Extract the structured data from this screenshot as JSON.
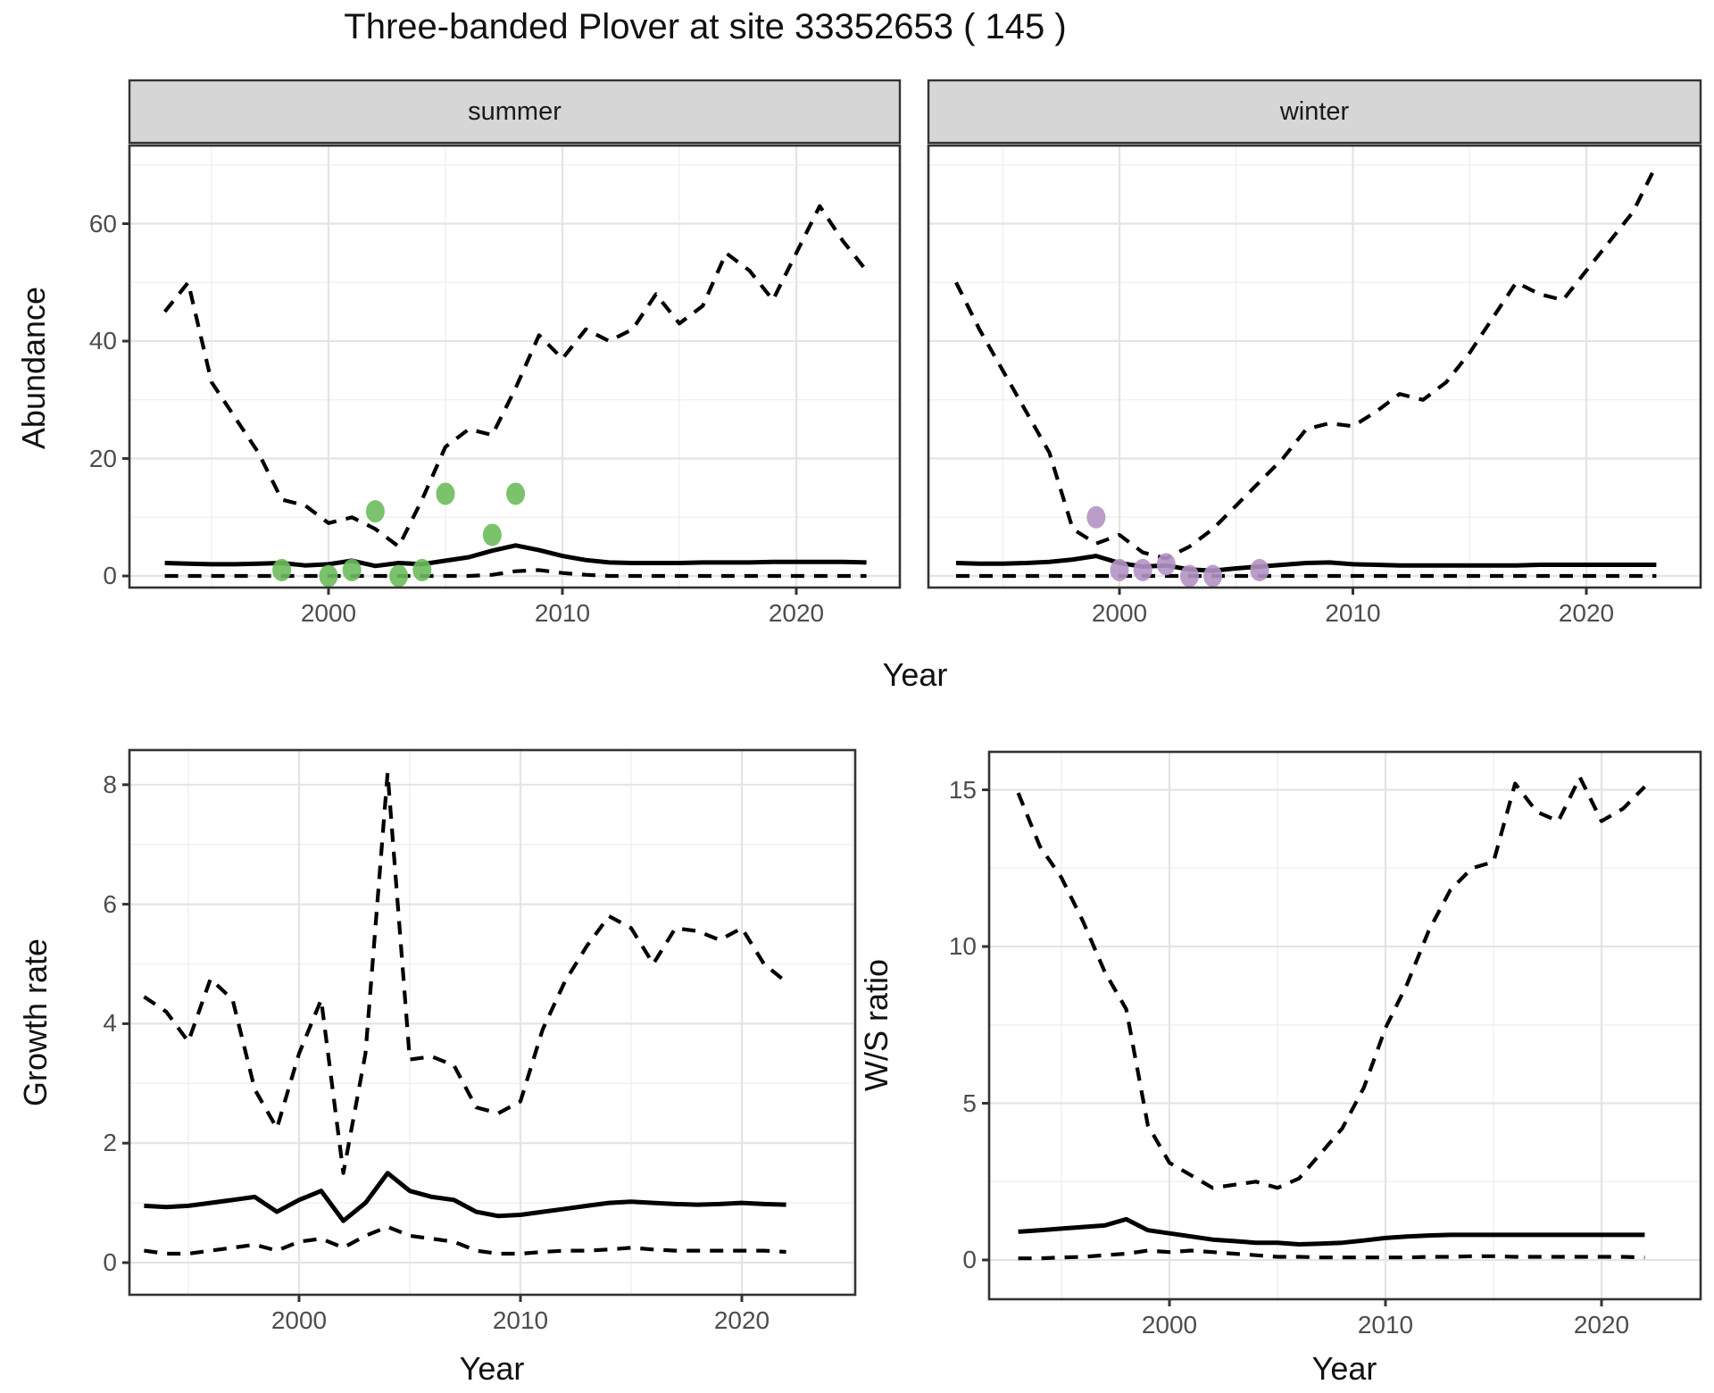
{
  "title": "Three-banded Plover at site 33352653 ( 145 )",
  "colors": {
    "summer_points": "#6dbb5d",
    "winter_points": "#b492c4",
    "line": "#000000",
    "strip_bg": "#d6d6d6",
    "panel_border": "#333333",
    "grid_major": "#e4e4e4",
    "grid_minor": "#f1f1f1",
    "tick_text": "#4d4d4d",
    "tick_mark": "#333333"
  },
  "top_plot": {
    "ylabel": "Abundance",
    "xlabel": "Year",
    "facet_summer": "summer",
    "facet_winter": "winter"
  },
  "growth_plot": {
    "ylabel": "Growth rate",
    "xlabel": "Year"
  },
  "ws_plot": {
    "ylabel": "W/S ratio",
    "xlabel": "Year"
  },
  "chart_data": [
    {
      "id": "abundance-summer",
      "type": "line",
      "facet": "summer",
      "xlabel": "Year",
      "ylabel": "Abundance",
      "x_ticks": [
        2000,
        2010,
        2020
      ],
      "y_ticks": [
        0,
        20,
        40,
        60
      ],
      "xlim": [
        1991.5,
        2024.4
      ],
      "ylim": [
        -2,
        73
      ],
      "grid": true,
      "legend": "none",
      "years": [
        1993,
        1994,
        1995,
        1996,
        1997,
        1998,
        1999,
        2000,
        2001,
        2002,
        2003,
        2004,
        2005,
        2006,
        2007,
        2008,
        2009,
        2010,
        2011,
        2012,
        2013,
        2014,
        2015,
        2016,
        2017,
        2018,
        2019,
        2020,
        2021,
        2022,
        2023
      ],
      "series": [
        {
          "name": "upper_ci",
          "style": "dashed",
          "values": [
            45,
            50,
            33,
            27,
            21,
            13,
            12,
            9,
            10,
            8,
            5,
            13,
            22,
            25,
            24,
            32,
            41,
            37,
            42,
            40,
            42,
            48,
            43,
            46,
            55,
            52,
            47,
            55,
            63,
            57,
            52
          ]
        },
        {
          "name": "median",
          "style": "solid",
          "values": [
            2.2,
            2.1,
            2,
            2,
            2.1,
            2.2,
            1.8,
            2,
            2.6,
            1.7,
            2.2,
            2,
            2.6,
            3.2,
            4.3,
            5.2,
            4.4,
            3.4,
            2.7,
            2.3,
            2.2,
            2.2,
            2.2,
            2.3,
            2.3,
            2.3,
            2.4,
            2.4,
            2.4,
            2.4,
            2.3
          ]
        },
        {
          "name": "lower_ci",
          "style": "dashed",
          "values": [
            0,
            0,
            0,
            0,
            0,
            0,
            0,
            0,
            0,
            0,
            0,
            0,
            0,
            0,
            0.2,
            0.8,
            1,
            0.5,
            0.2,
            0,
            0,
            0,
            0,
            0,
            0,
            0,
            0,
            0,
            0,
            0,
            0
          ]
        }
      ],
      "points": {
        "name": "observed_counts",
        "color_key": "summer_points",
        "data": [
          [
            1998,
            1
          ],
          [
            2000,
            0
          ],
          [
            2001,
            1
          ],
          [
            2002,
            11
          ],
          [
            2003,
            0
          ],
          [
            2004,
            1
          ],
          [
            2005,
            14
          ],
          [
            2007,
            7
          ],
          [
            2008,
            14
          ]
        ]
      }
    },
    {
      "id": "abundance-winter",
      "type": "line",
      "facet": "winter",
      "xlabel": "Year",
      "ylabel": "Abundance",
      "x_ticks": [
        2000,
        2010,
        2020
      ],
      "y_ticks": [
        0,
        20,
        40,
        60
      ],
      "xlim": [
        1991.8,
        2024.9
      ],
      "ylim": [
        -2,
        73
      ],
      "grid": true,
      "legend": "none",
      "years": [
        1993,
        1994,
        1995,
        1996,
        1997,
        1998,
        1999,
        2000,
        2001,
        2002,
        2003,
        2004,
        2005,
        2006,
        2007,
        2008,
        2009,
        2010,
        2011,
        2012,
        2013,
        2014,
        2015,
        2016,
        2017,
        2018,
        2019,
        2020,
        2021,
        2022,
        2023
      ],
      "series": [
        {
          "name": "upper_ci",
          "style": "dashed",
          "values": [
            50,
            42,
            35,
            28,
            21,
            8,
            5.5,
            7,
            4,
            3,
            5,
            8,
            12,
            16,
            20,
            25,
            26,
            25.5,
            28,
            31,
            30,
            33,
            38,
            44,
            50,
            48,
            47,
            52,
            57,
            62,
            70
          ]
        },
        {
          "name": "median",
          "style": "solid",
          "values": [
            2.2,
            2.1,
            2.1,
            2.2,
            2.4,
            2.8,
            3.4,
            2.2,
            1.6,
            1.8,
            1.1,
            0.9,
            1.3,
            1.6,
            1.9,
            2.2,
            2.3,
            2,
            1.9,
            1.8,
            1.8,
            1.8,
            1.8,
            1.8,
            1.8,
            1.9,
            1.9,
            1.9,
            1.9,
            1.9,
            1.9
          ]
        },
        {
          "name": "lower_ci",
          "style": "dashed",
          "values": [
            0,
            0,
            0,
            0,
            0,
            0,
            0,
            0,
            0,
            0,
            0,
            0,
            0,
            0,
            0,
            0,
            0,
            0,
            0,
            0,
            0,
            0,
            0,
            0,
            0,
            0,
            0,
            0,
            0,
            0,
            0
          ]
        }
      ],
      "points": {
        "name": "observed_counts",
        "color_key": "winter_points",
        "data": [
          [
            1999,
            10
          ],
          [
            2000,
            1
          ],
          [
            2001,
            1
          ],
          [
            2002,
            2
          ],
          [
            2003,
            0
          ],
          [
            2004,
            0
          ],
          [
            2006,
            1
          ]
        ]
      }
    },
    {
      "id": "growth-rate",
      "type": "line",
      "facet": null,
      "xlabel": "Year",
      "ylabel": "Growth rate",
      "x_ticks": [
        2000,
        2010,
        2020
      ],
      "y_ticks": [
        0,
        2,
        4,
        6,
        8
      ],
      "xlim": [
        1992.3,
        2025.1
      ],
      "ylim": [
        -0.5,
        8.6
      ],
      "grid": true,
      "legend": "none",
      "years": [
        1993,
        1994,
        1995,
        1996,
        1997,
        1998,
        1999,
        2000,
        2001,
        2002,
        2003,
        2004,
        2005,
        2006,
        2007,
        2008,
        2009,
        2010,
        2011,
        2012,
        2013,
        2014,
        2015,
        2016,
        2017,
        2018,
        2019,
        2020,
        2021,
        2022
      ],
      "series": [
        {
          "name": "upper_ci",
          "style": "dashed",
          "values": [
            4.45,
            4.2,
            3.7,
            4.75,
            4.4,
            2.9,
            2.25,
            3.5,
            4.4,
            1.5,
            3.5,
            8.2,
            3.4,
            3.45,
            3.3,
            2.6,
            2.5,
            2.7,
            3.9,
            4.7,
            5.3,
            5.8,
            5.6,
            5,
            5.6,
            5.55,
            5.4,
            5.6,
            5,
            4.7
          ]
        },
        {
          "name": "median",
          "style": "solid",
          "values": [
            0.95,
            0.93,
            0.95,
            1,
            1.05,
            1.1,
            0.85,
            1.05,
            1.2,
            0.7,
            1,
            1.5,
            1.2,
            1.1,
            1.05,
            0.85,
            0.78,
            0.8,
            0.85,
            0.9,
            0.95,
            1,
            1.02,
            1,
            0.98,
            0.97,
            0.98,
            1,
            0.98,
            0.97
          ]
        },
        {
          "name": "lower_ci",
          "style": "dashed",
          "values": [
            0.2,
            0.15,
            0.15,
            0.2,
            0.25,
            0.3,
            0.2,
            0.35,
            0.4,
            0.25,
            0.45,
            0.6,
            0.45,
            0.4,
            0.35,
            0.2,
            0.15,
            0.15,
            0.18,
            0.2,
            0.2,
            0.22,
            0.25,
            0.22,
            0.2,
            0.2,
            0.2,
            0.2,
            0.2,
            0.18
          ]
        }
      ]
    },
    {
      "id": "ws-ratio",
      "type": "line",
      "facet": null,
      "xlabel": "Year",
      "ylabel": "W/S ratio",
      "x_ticks": [
        2000,
        2010,
        2020
      ],
      "y_ticks": [
        0,
        5,
        10,
        15
      ],
      "xlim": [
        1991.7,
        2024.6
      ],
      "ylim": [
        -1.2,
        16.2
      ],
      "grid": true,
      "legend": "none",
      "years": [
        1993,
        1994,
        1995,
        1996,
        1997,
        1998,
        1999,
        2000,
        2001,
        2002,
        2003,
        2004,
        2005,
        2006,
        2007,
        2008,
        2009,
        2010,
        2011,
        2012,
        2013,
        2014,
        2015,
        2016,
        2017,
        2018,
        2019,
        2020,
        2021,
        2022
      ],
      "series": [
        {
          "name": "upper_ci",
          "style": "dashed",
          "values": [
            14.9,
            13.2,
            12.2,
            10.8,
            9.2,
            8,
            4.3,
            3.1,
            2.7,
            2.3,
            2.4,
            2.5,
            2.3,
            2.6,
            3.4,
            4.2,
            5.5,
            7.4,
            8.8,
            10.5,
            11.8,
            12.5,
            12.7,
            15.2,
            14.3,
            14,
            15.4,
            14,
            14.4,
            15.1
          ]
        },
        {
          "name": "median",
          "style": "solid",
          "values": [
            0.9,
            0.95,
            1,
            1.05,
            1.1,
            1.3,
            0.95,
            0.85,
            0.75,
            0.65,
            0.6,
            0.55,
            0.55,
            0.5,
            0.52,
            0.55,
            0.62,
            0.7,
            0.75,
            0.78,
            0.8,
            0.8,
            0.8,
            0.8,
            0.8,
            0.8,
            0.8,
            0.8,
            0.8,
            0.8
          ]
        },
        {
          "name": "lower_ci",
          "style": "dashed",
          "values": [
            0.05,
            0.05,
            0.08,
            0.1,
            0.15,
            0.2,
            0.3,
            0.25,
            0.3,
            0.25,
            0.2,
            0.15,
            0.1,
            0.1,
            0.08,
            0.08,
            0.08,
            0.08,
            0.08,
            0.1,
            0.1,
            0.12,
            0.12,
            0.1,
            0.1,
            0.1,
            0.1,
            0.1,
            0.1,
            0.08
          ]
        }
      ]
    }
  ]
}
